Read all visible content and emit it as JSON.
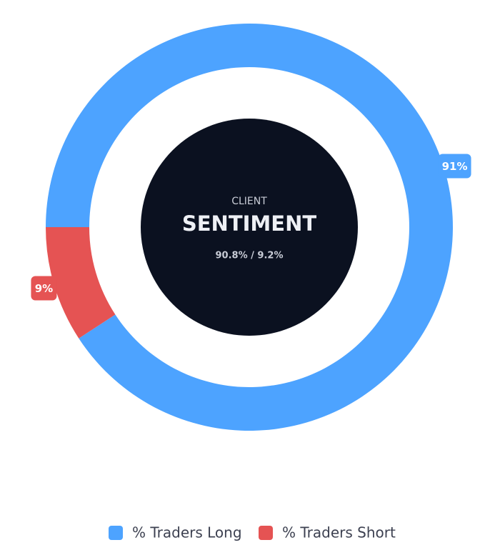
{
  "chart_data": {
    "type": "doughnut",
    "center_label": "CLIENT",
    "title": "SENTIMENT",
    "subtitle": "90.8% / 9.2%",
    "categories": [
      "% Traders Long",
      "% Traders Short"
    ],
    "values": [
      90.8,
      9.2
    ],
    "value_labels": [
      "91%",
      "9%"
    ],
    "colors": [
      "#4da3ff",
      "#e55353"
    ]
  }
}
